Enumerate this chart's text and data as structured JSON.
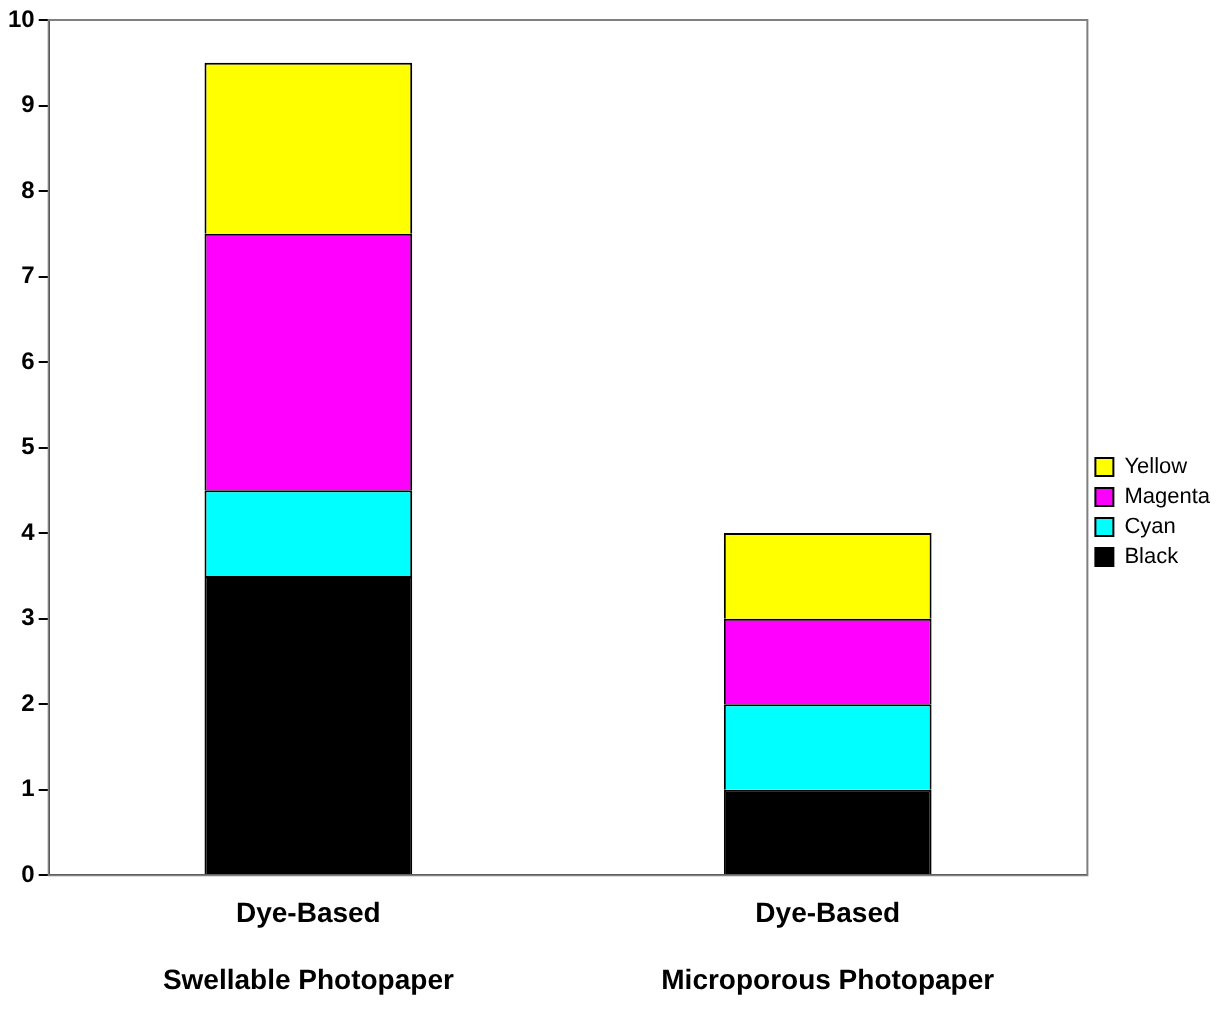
{
  "chart_data": {
    "type": "bar",
    "stacked": true,
    "categories": [
      "Dye-Based\n\nSwellable Photopaper",
      "Dye-Based\n\nMicroporous Photopaper"
    ],
    "series": [
      {
        "name": "Black",
        "color": "#000000",
        "values": [
          3.5,
          1
        ]
      },
      {
        "name": "Cyan",
        "color": "#00ffff",
        "values": [
          1,
          1
        ]
      },
      {
        "name": "Magenta",
        "color": "#ff00ff",
        "values": [
          3,
          1
        ]
      },
      {
        "name": "Yellow",
        "color": "#ffff00",
        "values": [
          2,
          1
        ]
      }
    ],
    "ylim": [
      0,
      10
    ],
    "yticks": [
      0,
      1,
      2,
      3,
      4,
      5,
      6,
      7,
      8,
      9,
      10
    ],
    "grid": false,
    "legend": "right"
  }
}
